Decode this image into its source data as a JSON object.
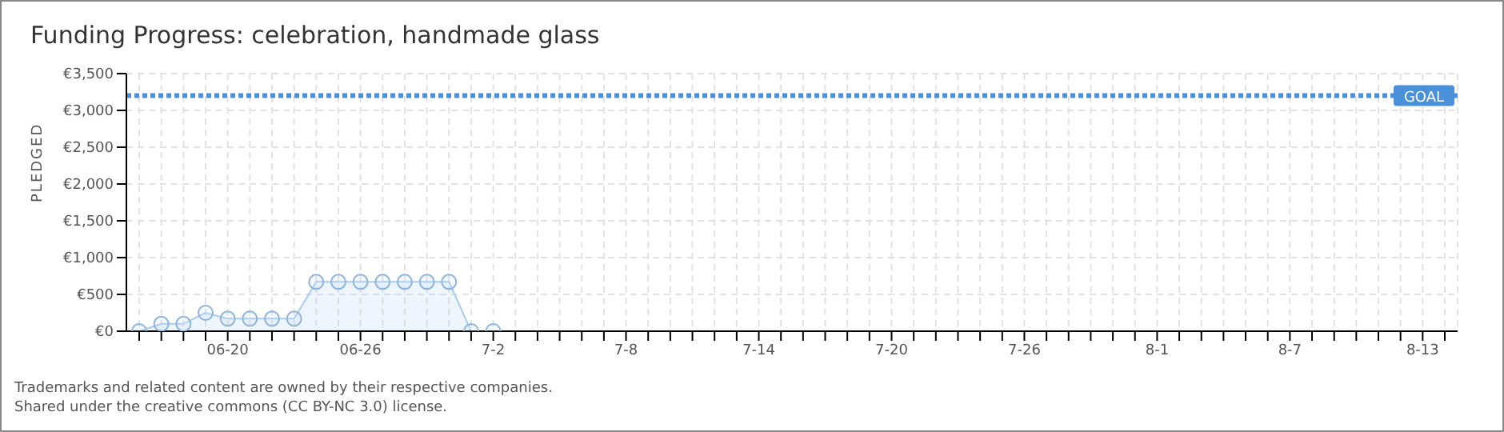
{
  "chart_data": {
    "type": "area",
    "title": "Funding Progress: celebration, handmade glass",
    "ylabel": "PLEDGED",
    "categories": [
      null,
      null,
      null,
      null,
      "06-20",
      null,
      null,
      null,
      null,
      null,
      "06-26",
      null,
      null,
      null,
      null,
      null,
      "7-2",
      null,
      null,
      null,
      null,
      null,
      "7-8",
      null,
      null,
      null,
      null,
      null,
      "7-14",
      null,
      null,
      null,
      null,
      null,
      "7-20",
      null,
      null,
      null,
      null,
      null,
      "7-26",
      null,
      null,
      null,
      null,
      null,
      "8-1",
      null,
      null,
      null,
      null,
      null,
      "8-7",
      null,
      null,
      null,
      null,
      null,
      "8-13",
      null
    ],
    "series": [
      {
        "color": "#a8cdf0",
        "values": [
          0,
          100,
          100,
          250,
          170,
          170,
          170,
          170,
          670,
          670,
          670,
          670,
          670,
          670,
          670,
          0,
          0,
          null,
          null,
          null,
          null,
          null,
          null,
          null,
          null,
          null,
          null,
          null,
          null,
          null,
          null,
          null,
          null,
          null,
          null,
          null,
          null,
          null,
          null,
          null,
          null,
          null,
          null,
          null,
          null,
          null,
          null,
          null,
          null,
          null,
          null,
          null,
          null,
          null,
          null,
          null,
          null,
          null,
          null,
          null
        ]
      }
    ],
    "ylim": [
      0,
      3500
    ],
    "yticks": [
      {
        "value": 0,
        "label": "€0"
      },
      {
        "value": 500,
        "label": "€500"
      },
      {
        "value": 1000,
        "label": "€1,000"
      },
      {
        "value": 1500,
        "label": "€1,500"
      },
      {
        "value": 2000,
        "label": "€2,000"
      },
      {
        "value": 2500,
        "label": "€2,500"
      },
      {
        "value": 3000,
        "label": "€3,000"
      },
      {
        "value": 3500,
        "label": "€3,500"
      }
    ],
    "ref_lines": [
      {
        "axis": "y",
        "value": 3200,
        "label": "GOAL",
        "color": "#4a90d9",
        "line_style": "dotted"
      }
    ],
    "grid": true,
    "marker": "circle",
    "legend": false,
    "annotations": [
      "Trademarks and related content are owned by their respective companies.",
      "Shared under the creative commons (CC BY-NC 3.0) license."
    ]
  }
}
